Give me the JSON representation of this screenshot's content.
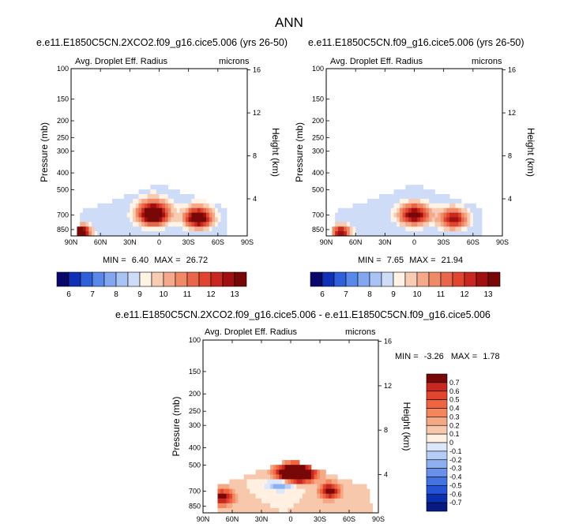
{
  "figure": {
    "title": "ANN"
  },
  "chart_data": [
    {
      "type": "heatmap",
      "title": "e.e11.E1850C5CN.2XCO2.f09_g16.cice5.006 (yrs 26-50)",
      "left_label": "Avg. Droplet Eff. Radius",
      "right_label": "microns",
      "ylabel": "Pressure (mb)",
      "ylabel_right": "Height (km)",
      "x_ticks": [
        "90N",
        "60N",
        "30N",
        "0",
        "30S",
        "60S",
        "90S"
      ],
      "y_ticks": [
        "100",
        "150",
        "200",
        "250",
        "300",
        "400",
        "500",
        "700",
        "850"
      ],
      "y_right_ticks": [
        "16",
        "12",
        "8",
        "4"
      ],
      "min_label": "MIN =",
      "min_value": "6.40",
      "max_label": "MAX =",
      "max_value": "26.72",
      "field": {
        "top_pressure": [
          null,
          null,
          null,
          null,
          null,
          null,
          null,
          null,
          null,
          null,
          null,
          null,
          null,
          null,
          null,
          null,
          null,
          null,
          null,
          null,
          null,
          null,
          null,
          null,
          null,
          null,
          null,
          null,
          null,
          null,
          null,
          null,
          null,
          null,
          null,
          null,
          null,
          null,
          null,
          null,
          null,
          null,
          null,
          null,
          null,
          null,
          null,
          null,
          null,
          null,
          null,
          null,
          null,
          null,
          null,
          null,
          null,
          null,
          null,
          null,
          null,
          null
        ],
        "peaks": [
          {
            "lat": 6,
            "p": 690,
            "amp": 6.5,
            "wlat": 16,
            "wp": 110
          },
          {
            "lat": -40,
            "p": 730,
            "amp": 6.0,
            "wlat": 14,
            "wp": 100
          },
          {
            "lat": 80,
            "p": 880,
            "amp": 6.0,
            "wlat": 10,
            "wp": 80
          },
          {
            "lat": 35,
            "p": 420,
            "amp": 5.0,
            "wlat": 2,
            "wp": 40
          }
        ],
        "background": 8.5,
        "poleward_edge_north": 85,
        "poleward_edge_south": -70
      }
    },
    {
      "type": "heatmap",
      "title": "e.e11.E1850C5CN.f09_g16.cice5.006 (yrs 26-50)",
      "left_label": "Avg. Droplet Eff. Radius",
      "right_label": "microns",
      "ylabel": "Pressure (mb)",
      "ylabel_right": "Height (km)",
      "x_ticks": [
        "90N",
        "60N",
        "30N",
        "0",
        "30S",
        "60S",
        "90S"
      ],
      "y_ticks": [
        "100",
        "150",
        "200",
        "250",
        "300",
        "400",
        "500",
        "700",
        "850"
      ],
      "y_right_ticks": [
        "16",
        "12",
        "8",
        "4"
      ],
      "min_label": "MIN =",
      "min_value": "7.65",
      "max_label": "MAX =",
      "max_value": "21.94",
      "field": {
        "peaks": [
          {
            "lat": 0,
            "p": 700,
            "amp": 5.0,
            "wlat": 16,
            "wp": 100
          },
          {
            "lat": -40,
            "p": 740,
            "amp": 4.5,
            "wlat": 14,
            "wp": 100
          },
          {
            "lat": 75,
            "p": 880,
            "amp": 4.5,
            "wlat": 10,
            "wp": 80
          }
        ],
        "background": 8.5,
        "poleward_edge_north": 85,
        "poleward_edge_south": -70
      }
    },
    {
      "type": "heatmap",
      "title": "e.e11.E1850C5CN.2XCO2.f09_g16.cice5.006 - e.e11.E1850C5CN.f09_g16.cice5.006",
      "left_label": "Avg. Droplet Eff. Radius",
      "right_label": "microns",
      "ylabel": "Pressure (mb)",
      "ylabel_right": "Height (km)",
      "x_ticks": [
        "90N",
        "60N",
        "30N",
        "0",
        "30S",
        "60S",
        "90S"
      ],
      "y_ticks": [
        "100",
        "150",
        "200",
        "250",
        "300",
        "400",
        "500",
        "700",
        "850"
      ],
      "y_right_ticks": [
        "16",
        "12",
        "8",
        "4"
      ],
      "min_label": "MIN =",
      "min_value": "-3.26",
      "max_label": "MAX =",
      "max_value": "1.78",
      "field": {
        "peaks": [
          {
            "lat": -5,
            "p": 560,
            "amp": 1.6,
            "wlat": 18,
            "wp": 60
          },
          {
            "lat": 10,
            "p": 640,
            "amp": -0.5,
            "wlat": 14,
            "wp": 50
          },
          {
            "lat": 70,
            "p": 760,
            "amp": 0.7,
            "wlat": 12,
            "wp": 80
          },
          {
            "lat": -40,
            "p": 700,
            "amp": 0.8,
            "wlat": 10,
            "wp": 70
          },
          {
            "lat": 25,
            "p": 470,
            "amp": -1.2,
            "wlat": 5,
            "wp": 25
          }
        ],
        "background": 0.1,
        "poleward_edge_north": 75,
        "poleward_edge_south": -85
      }
    }
  ],
  "colorbar_main": {
    "labels": [
      "6",
      "7",
      "8",
      "9",
      "10",
      "11",
      "12",
      "13"
    ],
    "colors": [
      "#08086b",
      "#1030b8",
      "#2f60dc",
      "#5888ea",
      "#82a7f0",
      "#aac3f5",
      "#cfdcf8",
      "#fff3e6",
      "#f8cbb3",
      "#f4a98a",
      "#f08a66",
      "#e8664a",
      "#e0452f",
      "#c8281f",
      "#a01010",
      "#780707"
    ]
  },
  "colorbar_diff": {
    "labels": [
      "0.7",
      "0.6",
      "0.5",
      "0.4",
      "0.3",
      "0.2",
      "0.1",
      "0",
      "-0.1",
      "-0.2",
      "-0.3",
      "-0.4",
      "-0.5",
      "-0.6",
      "-0.7"
    ],
    "colors": [
      "#780707",
      "#c8281f",
      "#e0452f",
      "#f0643f",
      "#f4865f",
      "#f6a784",
      "#f8c8ad",
      "#fff0e2",
      "#dbe7fb",
      "#b6cdf6",
      "#8fb0f0",
      "#6a91ea",
      "#4372e3",
      "#2354d6",
      "#0a30b0",
      "#061a80"
    ]
  }
}
